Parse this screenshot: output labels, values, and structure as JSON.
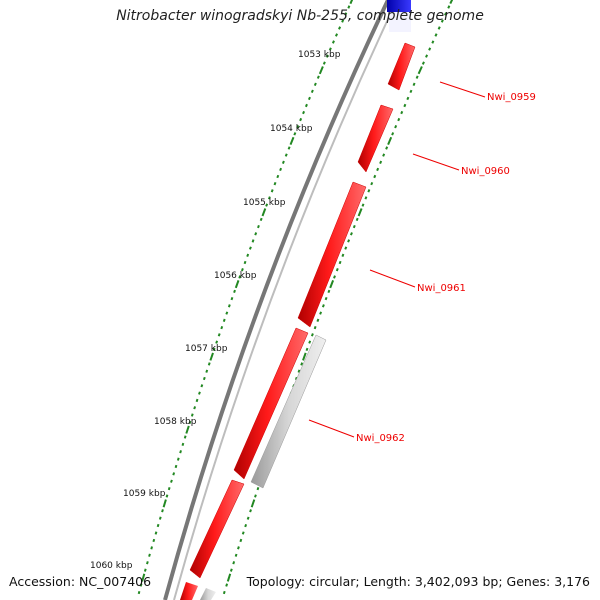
{
  "title": "Nitrobacter winogradskyi Nb-255, complete genome",
  "accession_text": "Accession: NC_007406",
  "summary_text": "Topology: circular; Length: 3,402,093 bp; Genes: 3,176",
  "colors": {
    "forward_gene": "#ff0000",
    "reverse_gene": "#c0c0c0",
    "other_gene": "#0000ee",
    "tick": "#228822",
    "backbone": "#777777",
    "label": "#ee0000"
  },
  "scale_ticks": [
    {
      "label": "1053 kbp"
    },
    {
      "label": "1054 kbp"
    },
    {
      "label": "1055 kbp"
    },
    {
      "label": "1056 kbp"
    },
    {
      "label": "1057 kbp"
    },
    {
      "label": "1058 kbp"
    },
    {
      "label": "1059 kbp"
    },
    {
      "label": "1060 kbp"
    }
  ],
  "gene_labels": [
    {
      "label": "Nwi_0959"
    },
    {
      "label": "Nwi_0960"
    },
    {
      "label": "Nwi_0961"
    },
    {
      "label": "Nwi_0962"
    }
  ]
}
